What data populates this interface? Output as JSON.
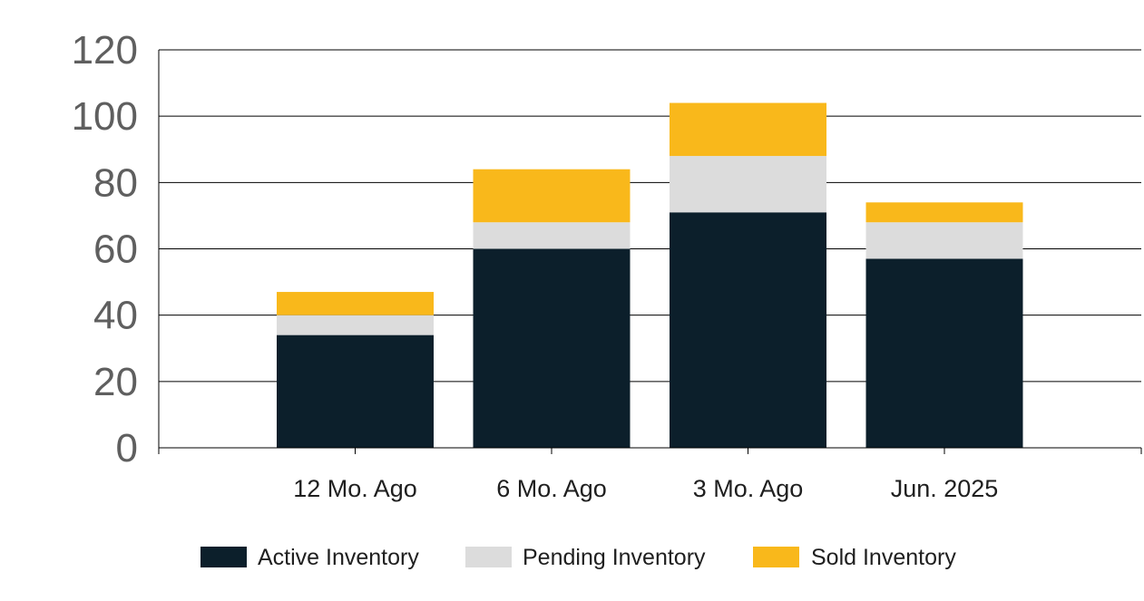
{
  "chart_data": {
    "type": "bar",
    "stacked": true,
    "categories": [
      "12 Mo. Ago",
      "6 Mo. Ago",
      "3 Mo. Ago",
      "Jun. 2025"
    ],
    "series": [
      {
        "name": "Active Inventory",
        "color": "#0c1f2b",
        "values": [
          34,
          60,
          71,
          57
        ]
      },
      {
        "name": "Pending Inventory",
        "color": "#dcdcdc",
        "values": [
          6,
          8,
          17,
          11
        ]
      },
      {
        "name": "Sold Inventory",
        "color": "#f9b81b",
        "values": [
          7,
          16,
          16,
          6
        ]
      }
    ],
    "ylim": [
      0,
      120
    ],
    "yticks": [
      0,
      20,
      40,
      60,
      80,
      100,
      120
    ],
    "grid": true,
    "legend": "bottom"
  }
}
